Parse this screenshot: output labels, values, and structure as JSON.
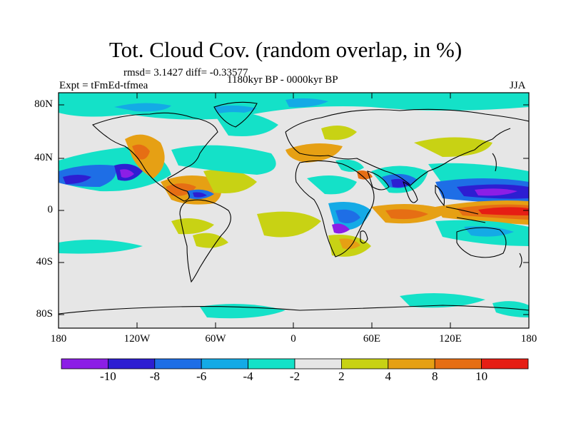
{
  "title": "Tot. Cloud Cov. (random overlap, in %)",
  "stats": "rmsd= 3.1427  diff= -0.33577",
  "expt": "Expt = tFmEd-tfmea",
  "period": "1180kyr BP - 0000kyr BP",
  "season": "JJA",
  "colors": {
    "background": "#e6e6e6",
    "land_outline": "#000000",
    "bins": [
      "#8c1ee6",
      "#2d1ed2",
      "#1e6ee6",
      "#14aae6",
      "#14e1c8",
      "#e6e6e6",
      "#c8d214",
      "#e6a014",
      "#e66e14",
      "#e61e14"
    ]
  },
  "map": {
    "lon_range": [
      -180,
      180
    ],
    "lat_range": [
      -90,
      90
    ],
    "y_ticks": [
      "80N",
      "40N",
      "0",
      "40S",
      "80S"
    ],
    "x_ticks": [
      "180",
      "120W",
      "60W",
      "0",
      "60E",
      "120E",
      "180"
    ]
  },
  "colorbar": {
    "labels": [
      "-10",
      "-8",
      "-6",
      "-4",
      "-2",
      "2",
      "4",
      "8",
      "10"
    ]
  }
}
